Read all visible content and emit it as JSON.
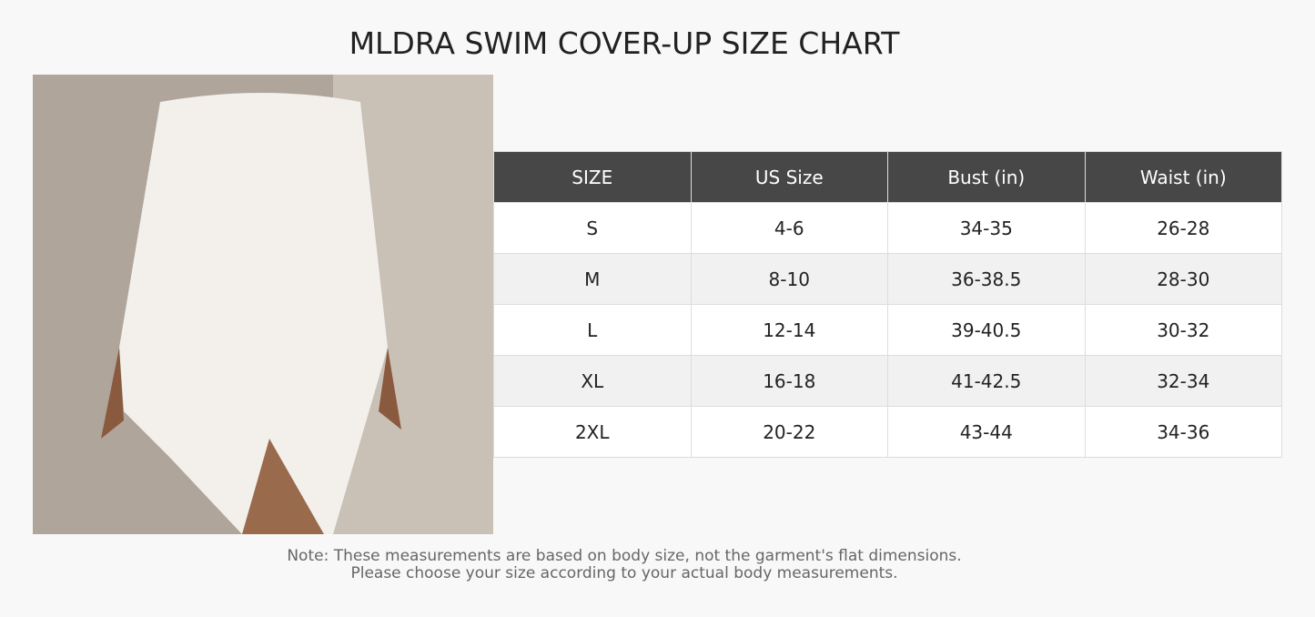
{
  "title": "MLDRA SWIM COVER-UP SIZE CHART",
  "table": {
    "header": [
      "SIZE",
      "US Size",
      "Bust (in)",
      "Waist (in)"
    ],
    "rows": [
      [
        "S",
        "4-6",
        "34-35",
        "26-28"
      ],
      [
        "M",
        "8-10",
        "36-38.5",
        "28-30"
      ],
      [
        "L",
        "12-14",
        "39-40.5",
        "30-32"
      ],
      [
        "XL",
        "16-18",
        "41-42.5",
        "32-34"
      ],
      [
        "2XL",
        "20-22",
        "43-44",
        "34-36"
      ]
    ]
  },
  "note": [
    "Note: These measurements are based on body size, not the garment's flat dimensions.",
    "Please choose your size according to your actual body measurements."
  ]
}
